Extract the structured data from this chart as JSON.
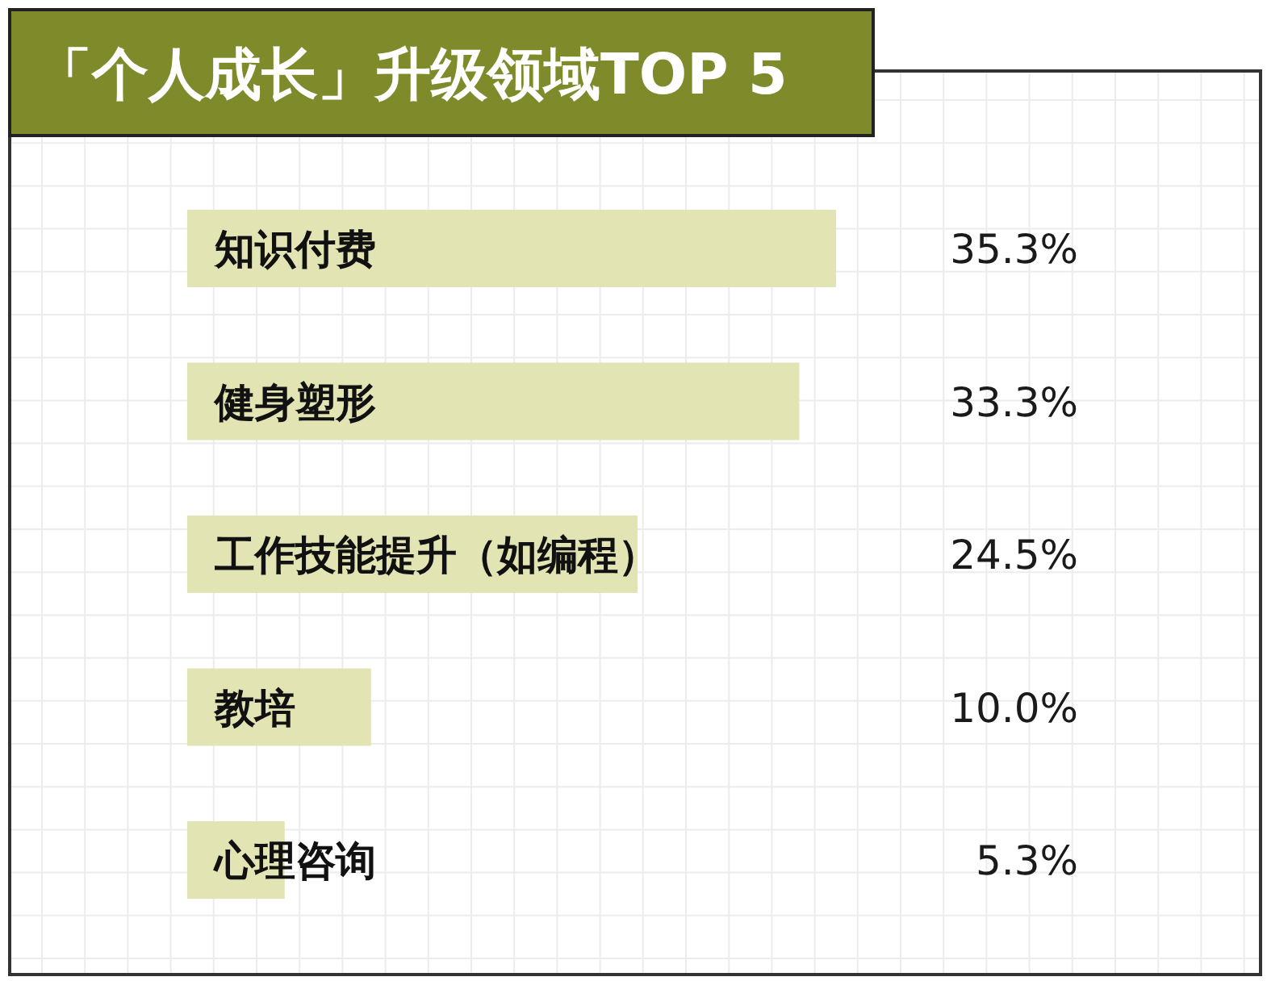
{
  "chart_data": {
    "type": "bar",
    "orientation": "horizontal",
    "title": "「个人成长」升级领域TOP 5",
    "categories": [
      "知识付费",
      "健身塑形",
      "工作技能提升（如编程）",
      "教培",
      "心理咨询"
    ],
    "values": [
      35.3,
      33.3,
      24.5,
      10.0,
      5.3
    ],
    "value_labels": [
      "35.3%",
      "33.3%",
      "24.5%",
      "10.0%",
      "5.3%"
    ],
    "color": "#e3e4b4",
    "grid": true,
    "tick_labels": "y"
  }
}
